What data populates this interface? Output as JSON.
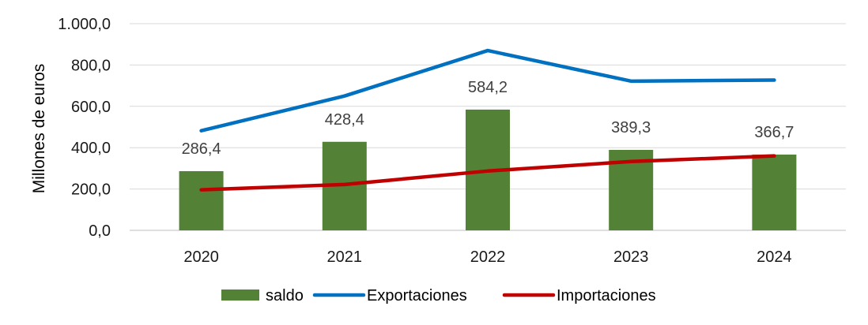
{
  "chart_data": {
    "type": "bar",
    "ylabel": "Millones de euros",
    "ylim": [
      0,
      1000
    ],
    "yticks": [
      "0,0",
      "200,0",
      "400,0",
      "600,0",
      "800,0",
      "1.000,0"
    ],
    "ytick_values": [
      0,
      200,
      400,
      600,
      800,
      1000
    ],
    "categories": [
      "2020",
      "2021",
      "2022",
      "2023",
      "2024"
    ],
    "grid": true,
    "legend_position": "bottom",
    "series": [
      {
        "name": "saldo",
        "kind": "bar",
        "color": "#538135",
        "values": [
          286.4,
          428.4,
          584.2,
          389.3,
          366.7
        ],
        "labels": [
          "286,4",
          "428,4",
          "584,2",
          "389,3",
          "366,7"
        ]
      },
      {
        "name": "Exportaciones",
        "kind": "line",
        "color": "#0070C0",
        "values": [
          482,
          650,
          870,
          722,
          727
        ]
      },
      {
        "name": "Importaciones",
        "kind": "line",
        "color": "#C00000",
        "values": [
          196,
          222,
          287,
          333,
          360
        ]
      }
    ]
  }
}
